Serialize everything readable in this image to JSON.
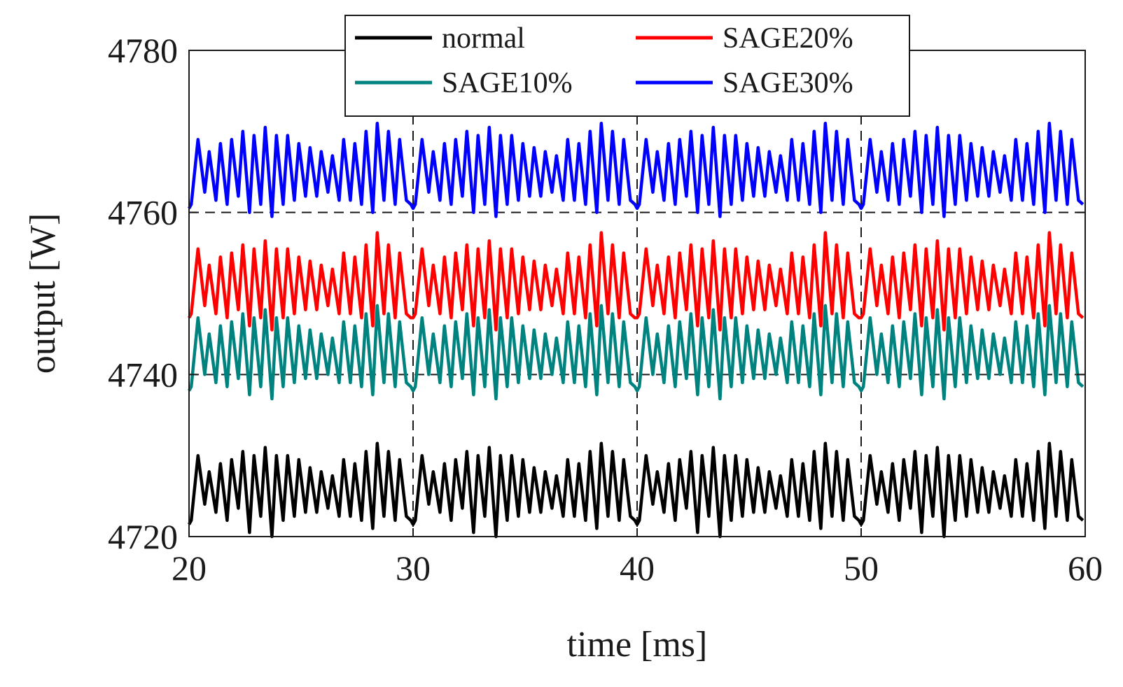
{
  "chart_data": {
    "type": "line",
    "xlabel": "time [ms]",
    "ylabel": "output [W]",
    "xlim": [
      20,
      60
    ],
    "ylim": [
      4720,
      4780
    ],
    "xticks": [
      20,
      30,
      40,
      50,
      60
    ],
    "yticks": [
      4720,
      4740,
      4760,
      4780
    ],
    "x_tick_labels": [
      "20",
      "30",
      "40",
      "50",
      "60"
    ],
    "y_tick_labels": [
      "4720",
      "4740",
      "4760",
      "4780"
    ],
    "grid": "dashed at x = 30, 40, 50 and y = 4740, 4760",
    "legend_placement": "top-center",
    "legend_columns": 2,
    "period_ms": 10,
    "series": [
      {
        "name": "normal",
        "color": "#000000",
        "x": [
          20.0,
          20.1,
          20.4,
          20.7,
          20.9,
          21.2,
          21.4,
          21.7,
          21.9,
          22.2,
          22.4,
          22.7,
          22.9,
          23.2,
          23.4,
          23.7,
          23.9,
          24.2,
          24.4,
          24.7,
          24.9,
          25.2,
          25.4,
          25.7,
          25.9,
          26.2,
          26.4,
          26.7,
          26.9,
          27.2,
          27.4,
          27.7,
          27.9,
          28.2,
          28.4,
          28.7,
          28.9,
          29.2,
          29.4,
          29.7,
          29.9
        ],
        "y": [
          4721.5,
          4722.0,
          4730.0,
          4724.0,
          4728.0,
          4723.0,
          4729.0,
          4722.0,
          4729.5,
          4723.5,
          4730.5,
          4720.5,
          4730.0,
          4722.5,
          4731.0,
          4720.0,
          4730.0,
          4722.0,
          4730.0,
          4722.5,
          4729.5,
          4723.0,
          4728.5,
          4723.0,
          4728.0,
          4723.5,
          4727.5,
          4722.5,
          4729.5,
          4722.5,
          4729.0,
          4722.0,
          4730.5,
          4721.0,
          4731.5,
          4722.5,
          4730.5,
          4722.0,
          4729.5,
          4722.5,
          4722.0
        ]
      },
      {
        "name": "SAGE10%",
        "color": "#00827f",
        "x": [
          20.0,
          20.1,
          20.4,
          20.7,
          20.9,
          21.2,
          21.4,
          21.7,
          21.9,
          22.2,
          22.4,
          22.7,
          22.9,
          23.2,
          23.4,
          23.7,
          23.9,
          24.2,
          24.4,
          24.7,
          24.9,
          25.2,
          25.4,
          25.7,
          25.9,
          26.2,
          26.4,
          26.7,
          26.9,
          27.2,
          27.4,
          27.7,
          27.9,
          28.2,
          28.4,
          28.7,
          28.9,
          29.2,
          29.4,
          29.7,
          29.9
        ],
        "y": [
          4738.0,
          4738.5,
          4747.0,
          4740.0,
          4745.0,
          4739.0,
          4746.0,
          4738.5,
          4746.5,
          4739.5,
          4747.5,
          4737.5,
          4747.0,
          4738.5,
          4748.0,
          4737.0,
          4747.0,
          4738.5,
          4747.0,
          4739.0,
          4746.0,
          4739.5,
          4745.5,
          4739.5,
          4745.0,
          4740.0,
          4744.5,
          4739.0,
          4746.5,
          4739.0,
          4746.0,
          4738.5,
          4747.5,
          4737.5,
          4748.5,
          4739.0,
          4747.5,
          4738.5,
          4746.5,
          4739.0,
          4738.5
        ]
      },
      {
        "name": "SAGE20%",
        "color": "#ff0000",
        "x": [
          20.0,
          20.1,
          20.4,
          20.7,
          20.9,
          21.2,
          21.4,
          21.7,
          21.9,
          22.2,
          22.4,
          22.7,
          22.9,
          23.2,
          23.4,
          23.7,
          23.9,
          24.2,
          24.4,
          24.7,
          24.9,
          25.2,
          25.4,
          25.7,
          25.9,
          26.2,
          26.4,
          26.7,
          26.9,
          27.2,
          27.4,
          27.7,
          27.9,
          28.2,
          28.4,
          28.7,
          28.9,
          29.2,
          29.4,
          29.7,
          29.9
        ],
        "y": [
          4747.0,
          4747.5,
          4755.5,
          4748.5,
          4753.5,
          4747.5,
          4754.5,
          4747.0,
          4755.0,
          4748.0,
          4756.0,
          4746.0,
          4755.5,
          4747.0,
          4756.5,
          4745.5,
          4755.5,
          4747.0,
          4755.5,
          4747.5,
          4754.5,
          4748.0,
          4754.0,
          4748.0,
          4753.5,
          4748.5,
          4753.0,
          4747.5,
          4755.0,
          4747.5,
          4754.5,
          4747.0,
          4756.0,
          4746.0,
          4757.5,
          4747.5,
          4756.0,
          4747.0,
          4755.0,
          4747.5,
          4747.0
        ]
      },
      {
        "name": "SAGE30%",
        "color": "#0000ff",
        "x": [
          20.0,
          20.1,
          20.4,
          20.7,
          20.9,
          21.2,
          21.4,
          21.7,
          21.9,
          22.2,
          22.4,
          22.7,
          22.9,
          23.2,
          23.4,
          23.7,
          23.9,
          24.2,
          24.4,
          24.7,
          24.9,
          25.2,
          25.4,
          25.7,
          25.9,
          26.2,
          26.4,
          26.7,
          26.9,
          27.2,
          27.4,
          27.7,
          27.9,
          28.2,
          28.4,
          28.7,
          28.9,
          29.2,
          29.4,
          29.7,
          29.9
        ],
        "y": [
          4760.5,
          4761.0,
          4769.0,
          4762.5,
          4767.5,
          4761.5,
          4768.5,
          4761.0,
          4769.0,
          4762.0,
          4770.0,
          4760.0,
          4769.5,
          4761.0,
          4770.5,
          4759.5,
          4769.5,
          4761.0,
          4769.5,
          4761.5,
          4768.5,
          4762.0,
          4768.0,
          4762.0,
          4767.5,
          4762.5,
          4767.0,
          4761.5,
          4769.0,
          4761.5,
          4768.5,
          4761.0,
          4770.0,
          4760.0,
          4771.0,
          4761.5,
          4770.0,
          4761.0,
          4769.0,
          4761.5,
          4761.0
        ]
      }
    ]
  }
}
